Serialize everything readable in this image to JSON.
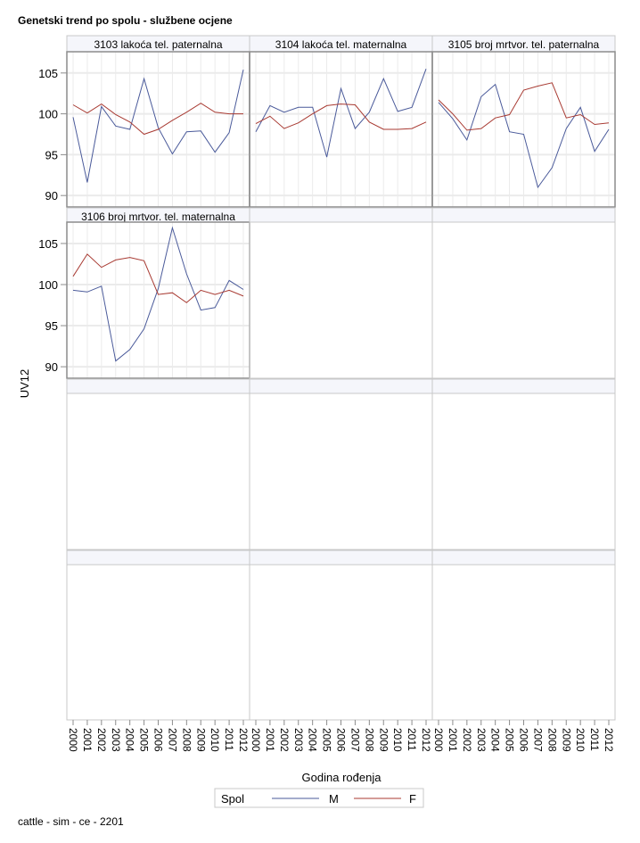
{
  "chart_data": {
    "type": "line",
    "title": "Genetski trend po spolu - službene ocjene",
    "xlabel": "Godina rođenja",
    "ylabel": "UV12",
    "footnote": "cattle - sim - ce - 2201",
    "x": [
      2000,
      2001,
      2002,
      2003,
      2004,
      2005,
      2006,
      2007,
      2008,
      2009,
      2010,
      2011,
      2012
    ],
    "x_tick_labels": [
      "2000",
      "2001",
      "2002",
      "2003",
      "2004",
      "2005",
      "2006",
      "2007",
      "2008",
      "2009",
      "2010",
      "2011",
      "2012"
    ],
    "ylim": [
      88.6,
      107.6
    ],
    "y_ticks": [
      90,
      95,
      100,
      105
    ],
    "y_tick_labels": [
      "90",
      "95",
      "100",
      "105"
    ],
    "grid": true,
    "legend": {
      "title": "Spol",
      "placement": "bottom",
      "entries": [
        {
          "name": "M",
          "color": "#4a5a9a"
        },
        {
          "name": "F",
          "color": "#a83a32"
        }
      ]
    },
    "panels": [
      {
        "title": "3103 lakoća tel. paternalna",
        "series": [
          {
            "name": "M",
            "values": [
              99.6,
              91.6,
              100.9,
              98.5,
              98.1,
              104.3,
              98.3,
              95.1,
              97.8,
              97.9,
              95.3,
              97.7,
              105.4
            ]
          },
          {
            "name": "F",
            "values": [
              101.1,
              100.1,
              101.2,
              99.9,
              99.0,
              97.5,
              98.1,
              99.2,
              100.2,
              101.3,
              100.2,
              100.0,
              100.0
            ]
          }
        ]
      },
      {
        "title": "3104 lakoća tel. maternalna",
        "series": [
          {
            "name": "M",
            "values": [
              97.8,
              101.0,
              100.2,
              100.8,
              100.8,
              94.7,
              103.1,
              98.2,
              100.2,
              104.3,
              100.3,
              100.8,
              105.5
            ]
          },
          {
            "name": "F",
            "values": [
              98.8,
              99.7,
              98.2,
              98.9,
              100.0,
              101.0,
              101.2,
              101.1,
              99.0,
              98.1,
              98.1,
              98.2,
              99.0
            ]
          }
        ]
      },
      {
        "title": "3105 broj mrtvor. tel. paternalna",
        "series": [
          {
            "name": "M",
            "values": [
              101.4,
              99.4,
              96.8,
              102.1,
              103.6,
              97.8,
              97.5,
              91.0,
              93.4,
              98.2,
              100.8,
              95.4,
              98.1
            ]
          },
          {
            "name": "F",
            "values": [
              101.7,
              100.0,
              98.0,
              98.2,
              99.5,
              99.9,
              102.9,
              103.4,
              103.8,
              99.5,
              99.9,
              98.7,
              98.9
            ]
          }
        ]
      },
      {
        "title": "3106 broj mrtvor. tel. maternalna",
        "series": [
          {
            "name": "M",
            "values": [
              99.3,
              99.1,
              99.8,
              90.7,
              92.1,
              94.6,
              99.5,
              106.9,
              101.3,
              96.9,
              97.2,
              100.5,
              99.4
            ]
          },
          {
            "name": "F",
            "values": [
              101.0,
              103.7,
              102.1,
              103.0,
              103.3,
              102.9,
              98.8,
              99.0,
              97.8,
              99.3,
              98.8,
              99.3,
              98.6
            ]
          }
        ]
      }
    ]
  }
}
